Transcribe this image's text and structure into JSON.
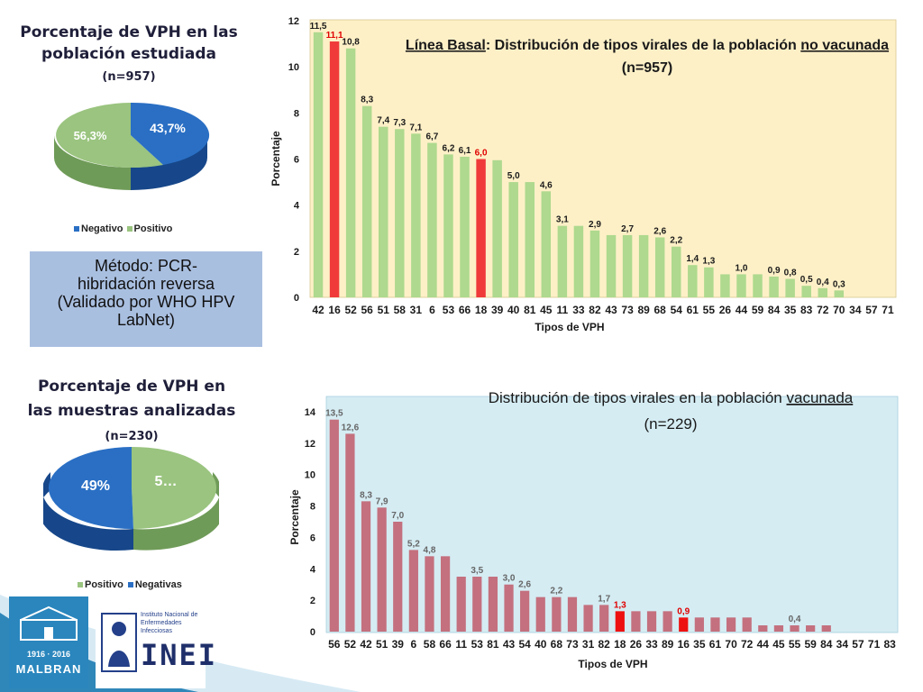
{
  "pie1": {
    "title": "Porcentaje de VPH en las población estudiada",
    "n": "(n=957)",
    "legend": [
      "Negativo",
      "Positivo"
    ],
    "colors": [
      "#2a6fc4",
      "#9ac47f"
    ],
    "slice_labels": [
      "43,7%",
      "56,3%"
    ]
  },
  "method": {
    "line1": "Método: PCR-",
    "line2": "hibridación reversa",
    "line3": "(Validado por WHO HPV",
    "line4": "LabNet)"
  },
  "pie2": {
    "title": "Porcentaje de VPH en las muestras analizadas",
    "n": "(n=230)",
    "legend": [
      "Positivo",
      "Negativas"
    ],
    "colors": [
      "#9ac47f",
      "#2a6fc4"
    ],
    "slice_labels": [
      "5…",
      "49%"
    ]
  },
  "logos": {
    "malbran_years": "1916 · 2016",
    "malbran_name": "MALBRAN",
    "inei_title": "Instituto Nacional de Enfermedades Infecciosas",
    "inei_name": "INEI"
  },
  "chart_data": [
    {
      "type": "pie",
      "categories": [
        "Negativo",
        "Positivo"
      ],
      "values": [
        43.7,
        56.3
      ],
      "labels": [
        "43,7%",
        "56,3%"
      ]
    },
    {
      "type": "bar",
      "title_prefix": "Línea Basal",
      "title_rest": ": Distribución de tipos virales de la población ",
      "title_underlined": "no vacunada",
      "title_n": "(n=957)",
      "xlabel": "Tipos de VPH",
      "ylabel": "Porcentaje",
      "ylim": [
        0,
        12
      ],
      "yticks": [
        "0",
        "2",
        "4",
        "6",
        "8",
        "10",
        "12"
      ],
      "categories": [
        "42",
        "16",
        "52",
        "56",
        "51",
        "58",
        "31",
        "6",
        "53",
        "66",
        "18",
        "39",
        "40",
        "81",
        "45",
        "11",
        "33",
        "82",
        "43",
        "73",
        "89",
        "68",
        "54",
        "61",
        "55",
        "26",
        "44",
        "59",
        "84",
        "35",
        "83",
        "72",
        "70",
        "34",
        "57",
        "71"
      ],
      "values": [
        11.5,
        11.1,
        10.8,
        8.3,
        7.4,
        7.3,
        7.1,
        6.7,
        6.2,
        6.1,
        6.0,
        5.95,
        5.0,
        5.0,
        4.6,
        3.1,
        3.1,
        2.9,
        2.7,
        2.7,
        2.7,
        2.6,
        2.2,
        1.4,
        1.3,
        1.0,
        1.0,
        1.0,
        0.9,
        0.8,
        0.5,
        0.4,
        0.3,
        0,
        0,
        0
      ],
      "labels": [
        "11,5",
        "11,1",
        "10,8",
        "8,3",
        "7,4",
        "7,3",
        "7,1",
        "6,7",
        "6,2",
        "6,1",
        "6,0",
        "",
        "5,0",
        "",
        "4,6",
        "3,1",
        "",
        "2,9",
        "",
        "2,7",
        "",
        "2,6",
        "2,2",
        "1,4",
        "1,3",
        "",
        "1,0",
        "",
        "0,9",
        "0,8",
        "0,5",
        "0,4",
        "0,3",
        "",
        "",
        ""
      ],
      "highlight": [
        1,
        10
      ],
      "colors": {
        "bar": "#aed98e",
        "highlight": "#f03a3a",
        "plot_bg": "#fdf0c7",
        "label": "#1a1a1a",
        "highlight_label": "#e00000"
      }
    },
    {
      "type": "bar",
      "title_prefix": "",
      "title_rest": "Distribución de tipos virales en la población ",
      "title_underlined": "vacunada",
      "title_n": "(n=229)",
      "xlabel": "Tipos de VPH",
      "ylabel": "Porcentaje",
      "ylim": [
        0,
        14
      ],
      "yticks": [
        "0",
        "2",
        "4",
        "6",
        "8",
        "10",
        "12",
        "14"
      ],
      "categories": [
        "56",
        "52",
        "42",
        "51",
        "39",
        "6",
        "58",
        "66",
        "11",
        "53",
        "81",
        "43",
        "54",
        "40",
        "68",
        "73",
        "31",
        "82",
        "18",
        "26",
        "33",
        "89",
        "16",
        "35",
        "61",
        "70",
        "72",
        "44",
        "45",
        "55",
        "59",
        "84",
        "34",
        "57",
        "71",
        "83"
      ],
      "values": [
        13.5,
        12.6,
        8.3,
        7.9,
        7.0,
        5.2,
        4.8,
        4.8,
        3.5,
        3.5,
        3.5,
        3.0,
        2.6,
        2.2,
        2.2,
        2.2,
        1.7,
        1.7,
        1.3,
        1.3,
        1.3,
        1.3,
        0.9,
        0.9,
        0.9,
        0.9,
        0.9,
        0.4,
        0.4,
        0.4,
        0.4,
        0.4,
        0,
        0,
        0,
        0
      ],
      "labels": [
        "13,5",
        "12,6",
        "8,3",
        "7,9",
        "7,0",
        "5,2",
        "4,8",
        "",
        "",
        "3,5",
        "",
        "3,0",
        "2,6",
        "",
        "2,2",
        "",
        "",
        "1,7",
        "1,3",
        "",
        "",
        "",
        "0,9",
        "",
        "",
        "",
        "",
        "",
        "",
        "0,4",
        "",
        "",
        "",
        "",
        "",
        ""
      ],
      "highlight": [
        18,
        22
      ],
      "colors": {
        "bar": "#c4707e",
        "highlight": "#ee1111",
        "plot_bg": "#d5ecf3",
        "label": "#666666",
        "highlight_label": "#e00000"
      }
    },
    {
      "type": "pie",
      "categories": [
        "Positivo",
        "Negativas"
      ],
      "values": [
        51,
        49
      ],
      "labels": [
        "5…",
        "49%"
      ]
    }
  ]
}
